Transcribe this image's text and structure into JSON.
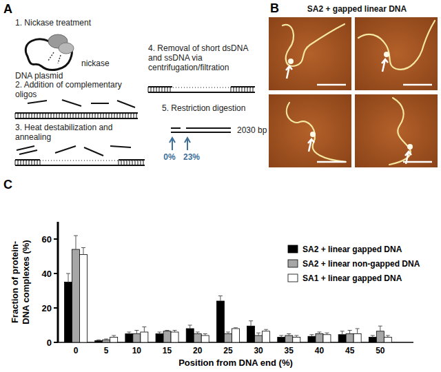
{
  "chart_data": {
    "type": "bar",
    "x_label": "Position from DNA end (%)",
    "y_label": [
      "Fraction of protein-",
      "DNA complexes (%)"
    ],
    "categories": [
      "0",
      "5",
      "10",
      "15",
      "20",
      "25",
      "30",
      "35",
      "40",
      "45",
      "50"
    ],
    "series": [
      {
        "name": "SA2 + linear gapped DNA",
        "color": "#000000",
        "values": [
          35,
          1,
          5,
          5,
          8,
          24,
          9.5,
          3,
          3.5,
          4.5,
          3
        ],
        "errors": [
          5,
          0.5,
          1,
          1,
          2,
          3,
          3,
          1,
          1,
          2,
          1
        ]
      },
      {
        "name": "SA2 + linear non-gapped DNA",
        "color": "#a6a6a6",
        "values": [
          54,
          1.5,
          5,
          6.5,
          5,
          5,
          4,
          4,
          5,
          5,
          6.5
        ],
        "errors": [
          8,
          0.5,
          2,
          0.5,
          1,
          1,
          1.5,
          1,
          1,
          2,
          3
        ]
      },
      {
        "name": "SA1 + linear gapped DNA",
        "color": "#ffffff",
        "values": [
          51,
          3,
          6,
          6,
          4,
          8,
          6.5,
          3,
          4.5,
          5,
          3
        ],
        "errors": [
          4,
          1,
          3,
          1,
          1,
          0.5,
          1,
          1,
          1,
          3,
          1
        ]
      }
    ],
    "ylim": [
      0,
      70
    ],
    "yticks": [
      0,
      20,
      40,
      60
    ],
    "grid": false,
    "legend": "top-right"
  },
  "figure": {
    "panel_labels": [
      "A",
      "B",
      "C"
    ],
    "diagram": {
      "steps": [
        [
          "1. Nickase treatment"
        ],
        [
          "2. Addition of complementary",
          "oligos"
        ],
        [
          "3. Heat destabilization and",
          "annealing"
        ],
        [
          "4. Removal of short dsDNA",
          "and ssDNA via",
          "centrifugation/filtration"
        ],
        [
          "5. Restriction digestion"
        ]
      ],
      "nickase": "nickase",
      "plasmid": "DNA plasmid",
      "length": "2030 bp",
      "sites": [
        "0%",
        "23%"
      ]
    },
    "afm": {
      "title": "SA2 + gapped linear DNA"
    }
  }
}
